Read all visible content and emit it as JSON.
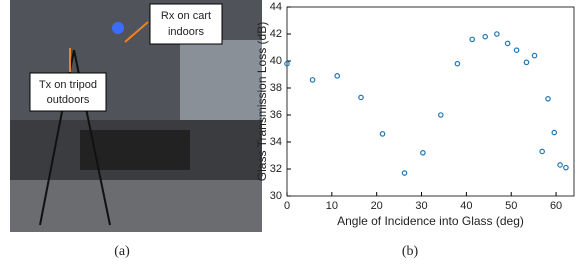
{
  "photo": {
    "annotations": [
      {
        "lines": [
          "Rx on cart",
          "indoors"
        ]
      },
      {
        "lines": [
          "Tx on tripod",
          "outdoors"
        ]
      }
    ]
  },
  "captions": [
    "(a)",
    "(b)"
  ],
  "chart_data": {
    "type": "scatter",
    "x_label": "Angle of Incidence into Glass (deg)",
    "y_label": "Glass Transmission Loss (dB)",
    "color": "#1f77b4",
    "series": [
      {
        "x": [
          0,
          5.7,
          11.2,
          16.5,
          21.3,
          26.2,
          30.3,
          34.3,
          38.0,
          41.3,
          44.2,
          46.8,
          49.2,
          51.2,
          53.4,
          55.2,
          56.9,
          58.2,
          59.6,
          60.9,
          62.2
        ],
        "values": [
          39.8,
          38.6,
          38.9,
          37.3,
          34.6,
          31.7,
          33.2,
          36.0,
          39.8,
          41.6,
          41.8,
          42.0,
          41.3,
          40.8,
          39.9,
          40.4,
          33.3,
          37.2,
          34.7,
          32.3,
          32.1
        ]
      }
    ],
    "xlim": [
      0,
      64
    ],
    "xticks": [
      0,
      10,
      20,
      30,
      40,
      50,
      60
    ],
    "ylim": [
      30,
      44
    ],
    "yticks": [
      30,
      32,
      34,
      36,
      38,
      40,
      42,
      44
    ]
  }
}
